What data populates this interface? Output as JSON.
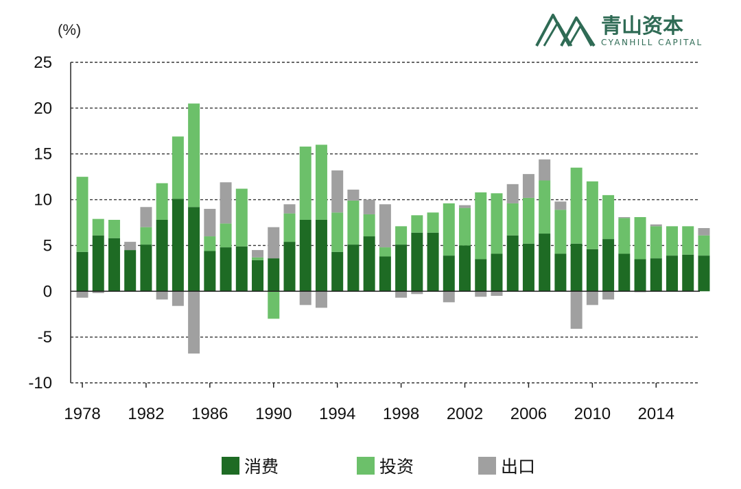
{
  "brand": {
    "name": "青山资本",
    "name_en": "CYANHILL CAPITAL",
    "color": "#2f6b55"
  },
  "colors": {
    "consumption": "#1e6b24",
    "investment": "#6cc06a",
    "export": "#a0a0a0"
  },
  "chart_data": {
    "type": "bar",
    "stacked": true,
    "title": "",
    "xlabel": "",
    "ylabel": "(%)",
    "ylim": [
      -10,
      25
    ],
    "yticks": [
      "25",
      "20",
      "15",
      "10",
      "5",
      "0",
      "-5",
      "-10"
    ],
    "xtick_labels": [
      "1978",
      "1982",
      "1986",
      "1990",
      "1994",
      "1998",
      "2002",
      "2006",
      "2010",
      "2014"
    ],
    "grid": true,
    "legend_position": "bottom",
    "categories": [
      "1978",
      "1979",
      "1980",
      "1981",
      "1982",
      "1983",
      "1984",
      "1985",
      "1986",
      "1987",
      "1988",
      "1989",
      "1990",
      "1991",
      "1992",
      "1993",
      "1994",
      "1995",
      "1996",
      "1997",
      "1998",
      "1999",
      "2000",
      "2001",
      "2002",
      "2003",
      "2004",
      "2005",
      "2006",
      "2007",
      "2008",
      "2009",
      "2010",
      "2011",
      "2012",
      "2013",
      "2014",
      "2015",
      "2016",
      "2017"
    ],
    "series": [
      {
        "name": "消费",
        "values": [
          4.3,
          6.1,
          5.8,
          4.5,
          5.1,
          7.8,
          10.1,
          9.2,
          4.4,
          4.8,
          4.9,
          3.4,
          3.6,
          5.4,
          7.8,
          7.8,
          4.3,
          5.1,
          6.0,
          3.8,
          5.1,
          6.4,
          6.4,
          3.9,
          5.0,
          3.5,
          4.1,
          6.1,
          5.2,
          6.3,
          4.1,
          5.2,
          4.6,
          5.7,
          4.1,
          3.5,
          3.6,
          3.9,
          4.0,
          3.9
        ]
      },
      {
        "name": "投资",
        "values": [
          8.2,
          1.8,
          2.0,
          0.0,
          1.9,
          4.0,
          6.8,
          11.3,
          1.6,
          2.6,
          6.3,
          0.3,
          -3.0,
          3.1,
          8.0,
          8.2,
          4.3,
          4.8,
          2.4,
          1.0,
          2.0,
          1.9,
          2.2,
          5.7,
          4.1,
          7.3,
          6.6,
          3.5,
          5.0,
          5.8,
          4.8,
          8.3,
          7.4,
          4.8,
          3.9,
          4.6,
          3.5,
          3.2,
          3.1,
          2.2
        ]
      },
      {
        "name": "出口",
        "values": [
          -0.7,
          -0.2,
          0.0,
          0.9,
          2.2,
          -0.9,
          -1.6,
          -6.8,
          3.0,
          4.5,
          0.0,
          0.8,
          3.4,
          1.0,
          -1.5,
          -1.8,
          4.6,
          1.2,
          1.6,
          4.7,
          -0.7,
          -0.3,
          0.0,
          -1.2,
          0.3,
          -0.6,
          -0.5,
          2.1,
          2.6,
          2.3,
          0.9,
          -4.1,
          -1.5,
          -0.9,
          0.1,
          -0.1,
          0.2,
          0.0,
          0.0,
          0.8
        ]
      }
    ]
  }
}
